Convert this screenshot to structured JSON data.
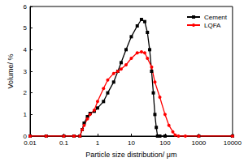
{
  "chart_data": {
    "type": "line",
    "x_label": "Particle size distribution/ μm",
    "y_label": "Volume/ %",
    "log": "x",
    "xlim": [
      0.01,
      10000
    ],
    "xticks": [
      0.01,
      0.1,
      1,
      10,
      100,
      1000,
      10000
    ],
    "ylim": [
      0,
      6
    ],
    "yticks": [
      0,
      1,
      2,
      3,
      4,
      5,
      6
    ],
    "grid": false,
    "legend": "top-right",
    "series": [
      {
        "name": "Cement",
        "color": "#000000",
        "marker": "square",
        "x": [
          0.01,
          0.03,
          0.1,
          0.2,
          0.3,
          0.35,
          0.4,
          0.5,
          0.6,
          0.8,
          1,
          1.5,
          2,
          3,
          4,
          5,
          7,
          10,
          15,
          20,
          25,
          30,
          35,
          40,
          45,
          50,
          55,
          60,
          70,
          100,
          1000,
          10000
        ],
        "values": [
          0,
          0,
          0,
          0,
          0,
          0.3,
          0.6,
          0.9,
          1.05,
          1.15,
          1.3,
          1.6,
          2.0,
          2.5,
          3.0,
          3.4,
          4.0,
          4.6,
          5.1,
          5.4,
          5.3,
          4.8,
          4.0,
          3.0,
          2.0,
          1.0,
          0.4,
          0,
          0,
          0,
          0,
          0
        ]
      },
      {
        "name": "LQFA",
        "color": "#ff0000",
        "marker": "circle",
        "x": [
          0.01,
          0.03,
          0.1,
          0.2,
          0.3,
          0.35,
          0.4,
          0.5,
          0.6,
          0.8,
          1,
          1.5,
          2,
          3,
          4,
          5,
          7,
          10,
          15,
          20,
          25,
          30,
          40,
          50,
          70,
          100,
          130,
          170,
          200,
          250,
          400,
          1000,
          10000
        ],
        "values": [
          0,
          0,
          0,
          0,
          0,
          0.3,
          0.5,
          0.8,
          1.0,
          1.2,
          1.6,
          2.2,
          2.6,
          2.9,
          3.0,
          3.1,
          3.3,
          3.6,
          3.85,
          3.9,
          3.85,
          3.6,
          3.2,
          2.5,
          1.8,
          1.0,
          0.5,
          0.2,
          0.05,
          0,
          0,
          0,
          0
        ]
      }
    ]
  }
}
